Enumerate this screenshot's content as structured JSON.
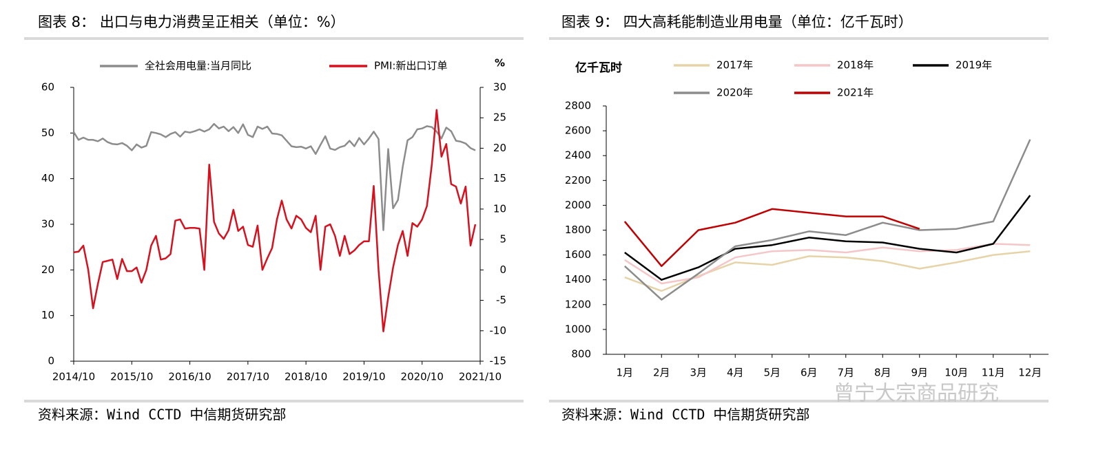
{
  "chart_data": [
    {
      "type": "line",
      "title": "图表 8：  出口与电力消费呈正相关（单位：%）",
      "source": "资料来源：Wind CCTD 中信期货研究部",
      "y2_unit": "%",
      "categories": [
        "2014/10",
        null,
        null,
        null,
        null,
        null,
        null,
        null,
        null,
        null,
        null,
        null,
        "2015/10",
        null,
        null,
        null,
        null,
        null,
        null,
        null,
        null,
        null,
        null,
        null,
        "2016/10",
        null,
        null,
        null,
        null,
        null,
        null,
        null,
        null,
        null,
        null,
        null,
        "2017/10",
        null,
        null,
        null,
        null,
        null,
        null,
        null,
        null,
        null,
        null,
        null,
        "2018/10",
        null,
        null,
        null,
        null,
        null,
        null,
        null,
        null,
        null,
        null,
        null,
        "2019/10",
        null,
        null,
        null,
        null,
        null,
        null,
        null,
        null,
        null,
        null,
        null,
        "2020/10",
        null,
        null,
        null,
        null,
        null,
        null,
        null,
        null,
        null,
        null,
        null,
        "2021/10"
      ],
      "ylim": [
        0,
        60
      ],
      "yticks": [
        0,
        10,
        20,
        30,
        40,
        50,
        60
      ],
      "y2lim": [
        -15,
        30
      ],
      "y2ticks": [
        -15,
        -10,
        -5,
        0,
        5,
        10,
        15,
        20,
        25,
        30
      ],
      "series": [
        {
          "name": "全社会用电量:当月同比",
          "color": "#8c8c8c",
          "values": [
            50.2,
            48.5,
            49,
            48.5,
            48.5,
            48.2,
            48.8,
            48,
            47.6,
            47.5,
            47.8,
            47.2,
            46.2,
            47.5,
            46.8,
            47.2,
            50.2,
            50.0,
            49.7,
            49.1,
            49.8,
            50.2,
            49.2,
            50.3,
            50.1,
            50.4,
            50.8,
            50.3,
            50.8,
            52.0,
            51.0,
            51.4,
            50.4,
            51.3,
            50.0,
            51.9,
            49.6,
            49.1,
            51.4,
            50.9,
            51.4,
            49.9,
            49.8,
            49.5,
            48.3,
            47.1,
            46.9,
            47.0,
            46.6,
            47.1,
            45.4,
            47.4,
            49.3,
            46.6,
            46.3,
            46.9,
            47.2,
            48.3,
            47.1,
            48.9,
            47.5,
            48.8,
            50.3,
            48.7,
            28.7,
            46.5,
            33.5,
            35.3,
            42.6,
            48.4,
            49.1,
            50.8,
            51.0,
            51.5,
            51.3,
            50.3,
            48.8,
            51.2,
            50.4,
            48.3,
            48.1,
            47.7,
            46.7,
            46.2,
            null
          ]
        },
        {
          "name": "PMI:新出口订单",
          "color": "#d7101d",
          "axis": "y2",
          "values": [
            2.9,
            3,
            4.0,
            0,
            -6.3,
            -2.3,
            1.3,
            1.5,
            1.7,
            -1.5,
            1.8,
            -0.2,
            -0.2,
            0.4,
            -2.1,
            0,
            4.0,
            5.6,
            1.7,
            1.9,
            2.6,
            8.1,
            8.3,
            6.8,
            6.9,
            6.9,
            6.8,
            0,
            17.3,
            7.9,
            6,
            5.1,
            6.5,
            9.9,
            6.4,
            7.1,
            4.1,
            3.8,
            7.3,
            0,
            1.9,
            3.6,
            8.3,
            11.4,
            8.3,
            6.8,
            8.9,
            8.3,
            6.9,
            6.2,
            8.9,
            0,
            7.1,
            7.5,
            5.6,
            2.3,
            5.6,
            2.6,
            3.2,
            4.1,
            4.7,
            4.7,
            13.8,
            0,
            -10.1,
            -4.5,
            0.4,
            4.1,
            6.4,
            2.3,
            7.7,
            7.1,
            8.3,
            10.5,
            17.3,
            26.3,
            18.6,
            20.7,
            14.1,
            13.7,
            10.9,
            13.7,
            4.0,
            7.5,
            null
          ]
        }
      ]
    },
    {
      "type": "line",
      "title": "图表 9：  四大高耗能制造业用电量（单位：亿千瓦时）",
      "source": "资料来源：Wind CCTD 中信期货研究部",
      "y_label": "亿千瓦时",
      "categories": [
        "1月",
        "2月",
        "3月",
        "4月",
        "5月",
        "6月",
        "7月",
        "8月",
        "9月",
        "10月",
        "11月",
        "12月"
      ],
      "ylim": [
        800,
        2800
      ],
      "yticks": [
        800,
        1000,
        1200,
        1400,
        1600,
        1800,
        2000,
        2200,
        2400,
        2600,
        2800
      ],
      "series": [
        {
          "name": "2017年",
          "color": "#e6d3a8",
          "values": [
            1420,
            1310,
            1430,
            1540,
            1520,
            1590,
            1580,
            1550,
            1490,
            1540,
            1600,
            1630
          ]
        },
        {
          "name": "2018年",
          "color": "#f4c6c8",
          "values": [
            1560,
            1370,
            1420,
            1580,
            1630,
            1640,
            1620,
            1660,
            1630,
            1640,
            1690,
            1680
          ]
        },
        {
          "name": "2019年",
          "color": "#000000",
          "values": [
            1620,
            1400,
            1500,
            1650,
            1680,
            1740,
            1710,
            1700,
            1650,
            1620,
            1690,
            2080
          ]
        },
        {
          "name": "2020年",
          "color": "#8c8c8c",
          "values": [
            1510,
            1240,
            1450,
            1670,
            1720,
            1790,
            1760,
            1860,
            1800,
            1810,
            1870,
            2530
          ]
        },
        {
          "name": "2021年",
          "color": "#c00000",
          "values": [
            1870,
            1510,
            1800,
            1860,
            1970,
            1940,
            1910,
            1910,
            1810,
            null,
            null,
            null
          ]
        }
      ]
    }
  ],
  "watermark": "曾宁大宗商品研究"
}
